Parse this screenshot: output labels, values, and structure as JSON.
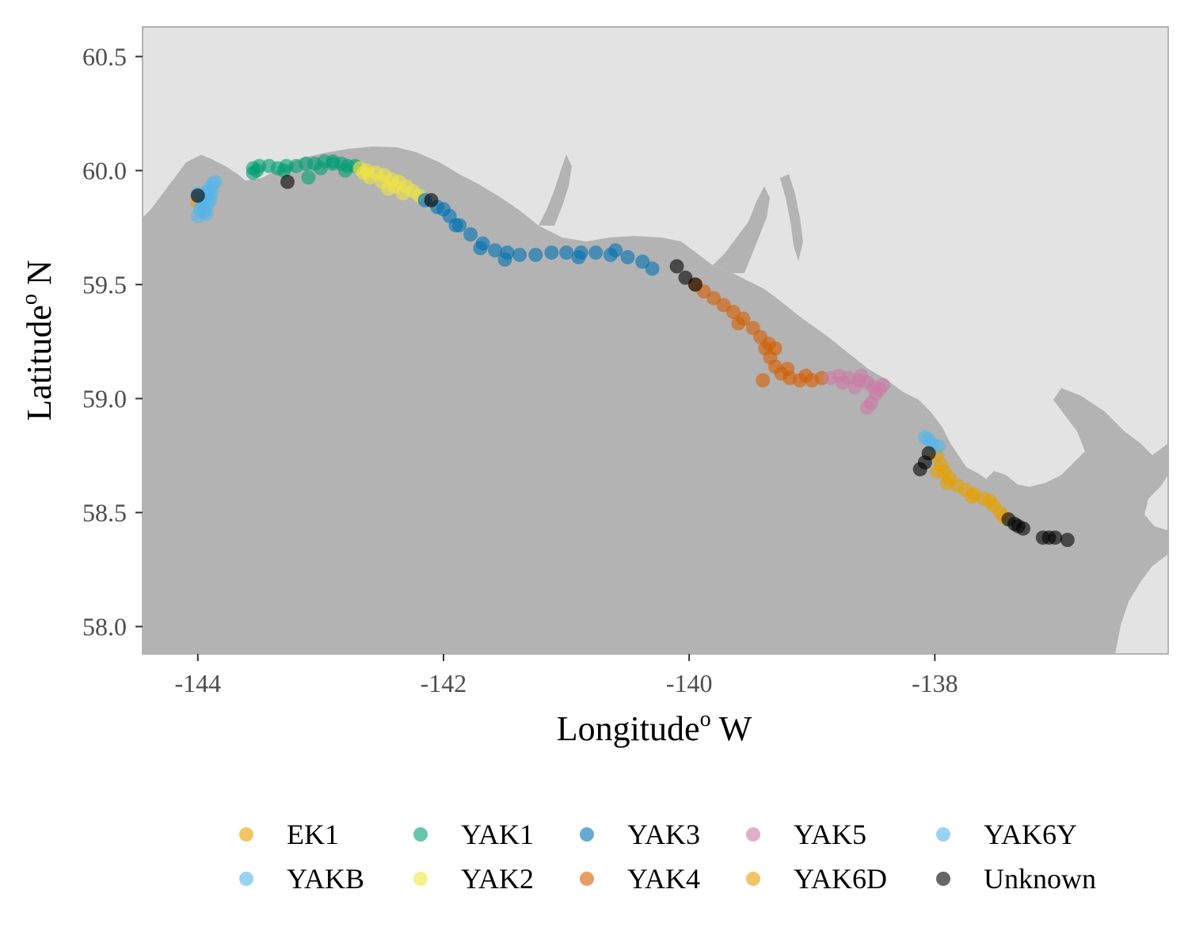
{
  "chart_data": {
    "type": "scatter",
    "title": "",
    "xlabel": "Longitude",
    "xlabel_super": "o",
    "xlabel_suffix": " W",
    "ylabel": "Latitude",
    "ylabel_super": "o",
    "ylabel_suffix": " N",
    "xlim": [
      -144.45,
      -136.1
    ],
    "ylim": [
      57.88,
      60.63
    ],
    "x_ticks": [
      -144,
      -142,
      -140,
      -138
    ],
    "x_tick_labels": [
      "-144",
      "-142",
      "-140",
      "-138"
    ],
    "y_ticks": [
      58.0,
      58.5,
      59.0,
      59.5,
      60.0,
      60.5
    ],
    "y_tick_labels": [
      "58.0",
      "58.5",
      "59.0",
      "59.5",
      "60.0",
      "60.5"
    ],
    "grid": false,
    "legend_position": "bottom",
    "colors": {
      "ocean": "#b3b3b3",
      "land": "#e3e3e3",
      "panel_border": "#b3b3b3"
    },
    "series": [
      {
        "name": "EK1",
        "color": "#E69F00",
        "points": [
          [
            -144.0,
            59.86
          ]
        ]
      },
      {
        "name": "YAKB",
        "color": "#56B4E9",
        "points": [
          [
            -144.0,
            59.8
          ],
          [
            -143.98,
            59.83
          ],
          [
            -143.97,
            59.86
          ],
          [
            -143.95,
            59.88
          ],
          [
            -143.93,
            59.9
          ],
          [
            -143.91,
            59.92
          ],
          [
            -143.88,
            59.94
          ],
          [
            -143.86,
            59.95
          ],
          [
            -143.95,
            59.82
          ],
          [
            -143.92,
            59.85
          ],
          [
            -143.9,
            59.87
          ],
          [
            -143.93,
            59.81
          ],
          [
            -144.0,
            59.9
          ],
          [
            -143.89,
            59.9
          ],
          [
            -143.96,
            59.84
          ]
        ]
      },
      {
        "name": "YAK1",
        "color": "#009E73",
        "points": [
          [
            -143.55,
            60.01
          ],
          [
            -143.5,
            60.02
          ],
          [
            -143.42,
            60.02
          ],
          [
            -143.35,
            60.01
          ],
          [
            -143.28,
            60.02
          ],
          [
            -143.2,
            60.02
          ],
          [
            -143.12,
            60.03
          ],
          [
            -143.05,
            60.03
          ],
          [
            -142.97,
            60.04
          ],
          [
            -142.9,
            60.03
          ],
          [
            -142.83,
            60.03
          ],
          [
            -142.78,
            60.02
          ],
          [
            -142.72,
            60.02
          ],
          [
            -143.52,
            60.0
          ],
          [
            -143.1,
            59.97
          ],
          [
            -143.0,
            60.01
          ],
          [
            -142.9,
            60.04
          ],
          [
            -143.3,
            60.0
          ],
          [
            -143.55,
            59.99
          ],
          [
            -142.8,
            60.0
          ]
        ]
      },
      {
        "name": "YAK2",
        "color": "#F0E442",
        "points": [
          [
            -142.68,
            60.01
          ],
          [
            -142.62,
            60.0
          ],
          [
            -142.55,
            59.99
          ],
          [
            -142.48,
            59.98
          ],
          [
            -142.42,
            59.96
          ],
          [
            -142.36,
            59.95
          ],
          [
            -142.3,
            59.93
          ],
          [
            -142.25,
            59.91
          ],
          [
            -142.2,
            59.89
          ],
          [
            -142.6,
            59.97
          ],
          [
            -142.5,
            59.95
          ],
          [
            -142.4,
            59.93
          ],
          [
            -142.33,
            59.9
          ],
          [
            -142.45,
            59.92
          ],
          [
            -142.65,
            59.99
          ]
        ]
      },
      {
        "name": "YAK3",
        "color": "#0072B2",
        "points": [
          [
            -142.15,
            59.87
          ],
          [
            -142.05,
            59.84
          ],
          [
            -141.95,
            59.8
          ],
          [
            -141.87,
            59.76
          ],
          [
            -141.78,
            59.72
          ],
          [
            -141.68,
            59.68
          ],
          [
            -141.58,
            59.65
          ],
          [
            -141.48,
            59.64
          ],
          [
            -141.38,
            59.63
          ],
          [
            -141.25,
            59.63
          ],
          [
            -141.12,
            59.64
          ],
          [
            -141.0,
            59.64
          ],
          [
            -140.88,
            59.64
          ],
          [
            -140.76,
            59.64
          ],
          [
            -140.64,
            59.63
          ],
          [
            -140.5,
            59.62
          ],
          [
            -140.38,
            59.6
          ],
          [
            -140.3,
            59.57
          ],
          [
            -141.7,
            59.66
          ],
          [
            -141.9,
            59.76
          ],
          [
            -141.5,
            59.61
          ],
          [
            -140.9,
            59.62
          ],
          [
            -140.6,
            59.65
          ],
          [
            -142.0,
            59.83
          ]
        ]
      },
      {
        "name": "YAK4",
        "color": "#D55E00",
        "points": [
          [
            -139.95,
            59.5
          ],
          [
            -139.88,
            59.47
          ],
          [
            -139.8,
            59.44
          ],
          [
            -139.72,
            59.41
          ],
          [
            -139.64,
            59.38
          ],
          [
            -139.56,
            59.35
          ],
          [
            -139.48,
            59.31
          ],
          [
            -139.42,
            59.27
          ],
          [
            -139.38,
            59.22
          ],
          [
            -139.34,
            59.18
          ],
          [
            -139.3,
            59.14
          ],
          [
            -139.25,
            59.11
          ],
          [
            -139.18,
            59.09
          ],
          [
            -139.1,
            59.08
          ],
          [
            -139.0,
            59.08
          ],
          [
            -138.92,
            59.09
          ],
          [
            -139.6,
            59.33
          ],
          [
            -139.35,
            59.24
          ],
          [
            -139.2,
            59.13
          ],
          [
            -139.4,
            59.08
          ],
          [
            -139.3,
            59.22
          ],
          [
            -139.05,
            59.1
          ]
        ]
      },
      {
        "name": "YAK5",
        "color": "#CC79A7",
        "points": [
          [
            -138.85,
            59.09
          ],
          [
            -138.78,
            59.1
          ],
          [
            -138.7,
            59.09
          ],
          [
            -138.62,
            59.08
          ],
          [
            -138.55,
            59.07
          ],
          [
            -138.5,
            59.05
          ],
          [
            -138.45,
            59.04
          ],
          [
            -138.42,
            59.06
          ],
          [
            -138.48,
            59.02
          ],
          [
            -138.52,
            58.98
          ],
          [
            -138.55,
            58.96
          ],
          [
            -138.6,
            59.1
          ],
          [
            -138.75,
            59.07
          ],
          [
            -138.65,
            59.05
          ]
        ]
      },
      {
        "name": "YAK6D",
        "color": "#E69F00",
        "points": [
          [
            -137.98,
            58.75
          ],
          [
            -137.95,
            58.71
          ],
          [
            -137.92,
            58.68
          ],
          [
            -137.88,
            58.65
          ],
          [
            -137.82,
            58.62
          ],
          [
            -137.75,
            58.6
          ],
          [
            -137.68,
            58.58
          ],
          [
            -137.6,
            58.56
          ],
          [
            -137.52,
            58.53
          ],
          [
            -137.47,
            58.5
          ],
          [
            -137.44,
            58.48
          ],
          [
            -137.98,
            58.68
          ],
          [
            -137.9,
            58.63
          ],
          [
            -137.7,
            58.57
          ],
          [
            -137.55,
            58.55
          ]
        ]
      },
      {
        "name": "YAK6Y",
        "color": "#56B4E9",
        "points": [
          [
            -138.08,
            58.83
          ],
          [
            -138.05,
            58.82
          ],
          [
            -138.02,
            58.8
          ],
          [
            -137.97,
            58.79
          ]
        ]
      },
      {
        "name": "Unknown",
        "color": "#000000",
        "points": [
          [
            -144.0,
            59.89
          ],
          [
            -143.27,
            59.95
          ],
          [
            -142.1,
            59.87
          ],
          [
            -140.1,
            59.58
          ],
          [
            -140.03,
            59.53
          ],
          [
            -139.95,
            59.5
          ],
          [
            -138.05,
            58.76
          ],
          [
            -138.08,
            58.72
          ],
          [
            -138.12,
            58.69
          ],
          [
            -137.4,
            58.47
          ],
          [
            -137.35,
            58.45
          ],
          [
            -137.32,
            58.44
          ],
          [
            -137.28,
            58.43
          ],
          [
            -137.12,
            58.39
          ],
          [
            -137.07,
            58.39
          ],
          [
            -137.02,
            58.39
          ],
          [
            -136.92,
            58.38
          ]
        ]
      }
    ]
  }
}
